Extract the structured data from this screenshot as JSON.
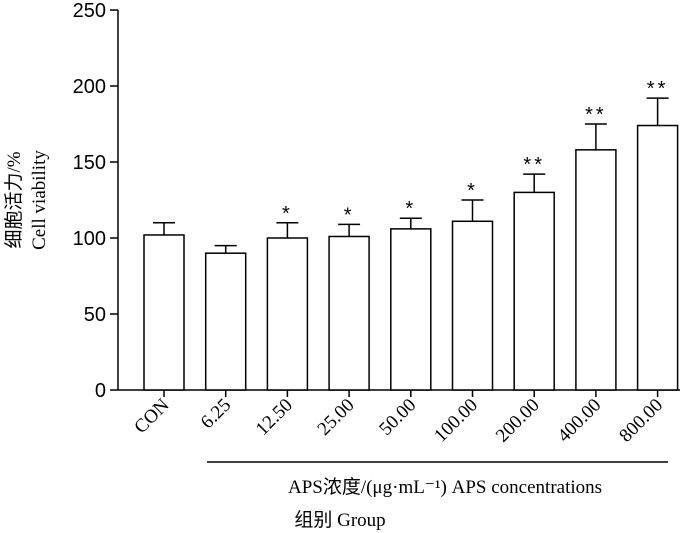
{
  "chart_data": {
    "type": "bar",
    "categories": [
      "CON",
      "6.25",
      "12.50",
      "25.00",
      "50.00",
      "100.00",
      "200.00",
      "400.00",
      "800.00"
    ],
    "values": [
      102,
      90,
      100,
      101,
      106,
      111,
      130,
      158,
      174
    ],
    "errors": [
      8,
      5,
      10,
      8,
      7,
      14,
      12,
      17,
      18
    ],
    "significance": [
      "",
      "",
      "*",
      "*",
      "*",
      "*",
      "**",
      "**",
      "**"
    ],
    "ylabel_cn": "细胞活力/%",
    "ylabel_en": "Cell viability",
    "ylim": [
      0,
      250
    ],
    "yticks": [
      0,
      50,
      100,
      150,
      200,
      250
    ],
    "group_label": "APS浓度/(μg·mL⁻¹)  APS concentrations",
    "xlabel": "组别 Group",
    "grid": false,
    "bar_fill": "#ffffff",
    "bar_stroke": "#000000"
  }
}
